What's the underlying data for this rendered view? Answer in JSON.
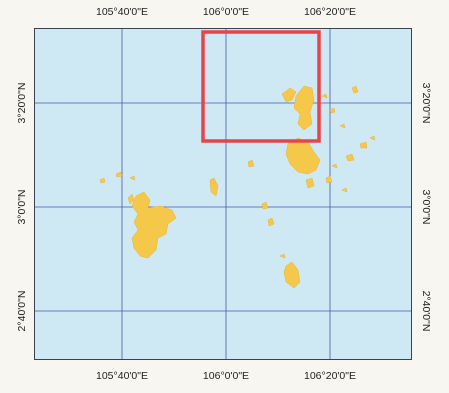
{
  "map": {
    "ocean_color": "#cfe9f4",
    "island_color": "#f5c84a",
    "grid_color": "#4a57a8",
    "highlight_color": "#e8424a",
    "top_lon_labels": [
      "105°40'0\"E",
      "106°0'0\"E",
      "106°20'0\"E"
    ],
    "bottom_lon_labels": [
      "105°40'0\"E",
      "106°0'0\"E",
      "106°20'0\"E"
    ],
    "left_lat_labels": [
      "3°20'0\"N",
      "3°0'0\"N",
      "2°40'0\"N"
    ],
    "right_lat_labels": [
      "3°20'0\"N",
      "3°0'0\"N",
      "2°40'0\"N"
    ]
  }
}
